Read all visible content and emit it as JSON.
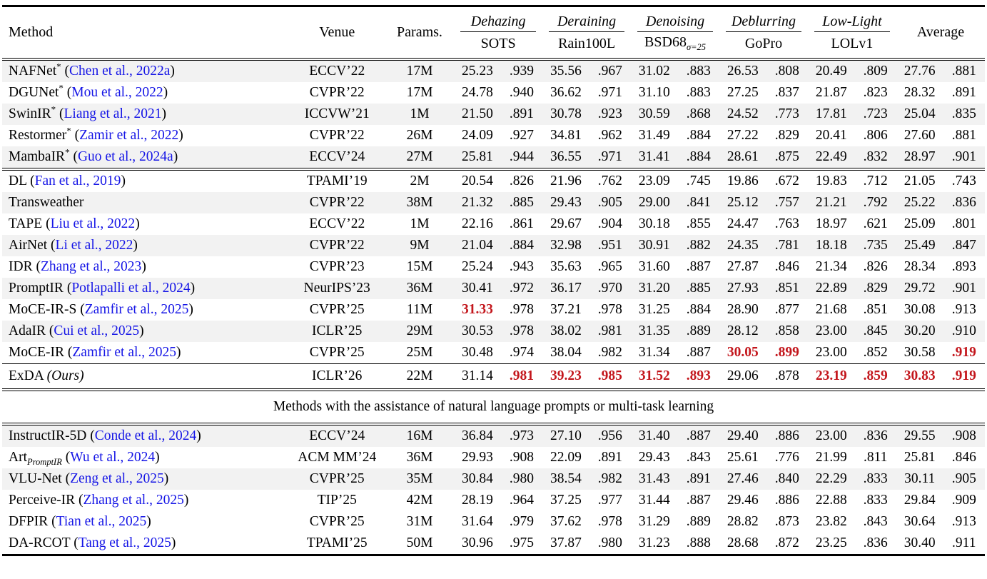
{
  "table": {
    "columns": {
      "method": "Method",
      "venue": "Venue",
      "params": "Params."
    },
    "tasks": [
      {
        "name": "Dehazing",
        "dataset": "SOTS",
        "dataset_sub": ""
      },
      {
        "name": "Deraining",
        "dataset": "Rain100L",
        "dataset_sub": ""
      },
      {
        "name": "Denoising",
        "dataset": "BSD68",
        "dataset_sub": "σ=25"
      },
      {
        "name": "Deblurring",
        "dataset": "GoPro",
        "dataset_sub": ""
      },
      {
        "name": "Low-Light",
        "dataset": "LOLv1",
        "dataset_sub": ""
      }
    ],
    "average_label": "Average",
    "section_label": "Methods with the assistance of natural language prompts or multi-task learning",
    "colors": {
      "stripe": "#f2f2f2",
      "citation_blue": "#1515e6",
      "highlight_red": "#c3161c"
    },
    "blocks": [
      {
        "name": "general",
        "rows": [
          {
            "method": "NAFNet",
            "sup": "*",
            "cite": "Chen et al., 2022a",
            "venue": "ECCV’22",
            "params": "17M",
            "stripe": true,
            "red": [],
            "vals": [
              "25.23",
              ".939",
              "35.56",
              ".967",
              "31.02",
              ".883",
              "26.53",
              ".808",
              "20.49",
              ".809",
              "27.76",
              ".881"
            ]
          },
          {
            "method": "DGUNet",
            "sup": "*",
            "cite": "Mou et al., 2022",
            "venue": "CVPR’22",
            "params": "17M",
            "stripe": false,
            "red": [],
            "vals": [
              "24.78",
              ".940",
              "36.62",
              ".971",
              "31.10",
              ".883",
              "27.25",
              ".837",
              "21.87",
              ".823",
              "28.32",
              ".891"
            ]
          },
          {
            "method": "SwinIR",
            "sup": "*",
            "cite": "Liang et al., 2021",
            "venue": "ICCVW’21",
            "params": "1M",
            "stripe": true,
            "red": [],
            "vals": [
              "21.50",
              ".891",
              "30.78",
              ".923",
              "30.59",
              ".868",
              "24.52",
              ".773",
              "17.81",
              ".723",
              "25.04",
              ".835"
            ]
          },
          {
            "method": "Restormer",
            "sup": "*",
            "cite": "Zamir et al., 2022",
            "venue": "CVPR’22",
            "params": "26M",
            "stripe": false,
            "red": [],
            "vals": [
              "24.09",
              ".927",
              "34.81",
              ".962",
              "31.49",
              ".884",
              "27.22",
              ".829",
              "20.41",
              ".806",
              "27.60",
              ".881"
            ]
          },
          {
            "method": "MambaIR",
            "sup": "*",
            "cite": "Guo et al., 2024a",
            "venue": "ECCV’24",
            "params": "27M",
            "stripe": true,
            "red": [],
            "vals": [
              "25.81",
              ".944",
              "36.55",
              ".971",
              "31.41",
              ".884",
              "28.61",
              ".875",
              "22.49",
              ".832",
              "28.97",
              ".901"
            ]
          }
        ]
      },
      {
        "name": "allinone",
        "rows": [
          {
            "method": "DL",
            "cite": "Fan et al., 2019",
            "venue": "TPAMI’19",
            "params": "2M",
            "stripe": false,
            "red": [],
            "vals": [
              "20.54",
              ".826",
              "21.96",
              ".762",
              "23.09",
              ".745",
              "19.86",
              ".672",
              "19.83",
              ".712",
              "21.05",
              ".743"
            ]
          },
          {
            "method": "Transweather",
            "venue": "CVPR’22",
            "params": "38M",
            "stripe": true,
            "red": [],
            "vals": [
              "21.32",
              ".885",
              "29.43",
              ".905",
              "29.00",
              ".841",
              "25.12",
              ".757",
              "21.21",
              ".792",
              "25.22",
              ".836"
            ]
          },
          {
            "method": "TAPE",
            "cite": "Liu et al., 2022",
            "venue": "ECCV’22",
            "params": "1M",
            "stripe": false,
            "red": [],
            "vals": [
              "22.16",
              ".861",
              "29.67",
              ".904",
              "30.18",
              ".855",
              "24.47",
              ".763",
              "18.97",
              ".621",
              "25.09",
              ".801"
            ]
          },
          {
            "method": "AirNet",
            "cite": "Li et al., 2022",
            "venue": "CVPR’22",
            "params": "9M",
            "stripe": true,
            "red": [],
            "vals": [
              "21.04",
              ".884",
              "32.98",
              ".951",
              "30.91",
              ".882",
              "24.35",
              ".781",
              "18.18",
              ".735",
              "25.49",
              ".847"
            ]
          },
          {
            "method": "IDR",
            "cite": "Zhang et al., 2023",
            "venue": "CVPR’23",
            "params": "15M",
            "stripe": false,
            "red": [],
            "vals": [
              "25.24",
              ".943",
              "35.63",
              ".965",
              "31.60",
              ".887",
              "27.87",
              ".846",
              "21.34",
              ".826",
              "28.34",
              ".893"
            ]
          },
          {
            "method": "PromptIR",
            "cite": "Potlapalli et al., 2024",
            "venue": "NeurIPS’23",
            "params": "36M",
            "stripe": true,
            "red": [],
            "vals": [
              "30.41",
              ".972",
              "36.17",
              ".970",
              "31.20",
              ".885",
              "27.93",
              ".851",
              "22.89",
              ".829",
              "29.72",
              ".901"
            ]
          },
          {
            "method": "MoCE-IR-S",
            "cite": "Zamfir et al., 2025",
            "venue": "CVPR’25",
            "params": "11M",
            "stripe": false,
            "red": [
              0
            ],
            "vals": [
              "31.33",
              ".978",
              "37.21",
              ".978",
              "31.25",
              ".884",
              "28.90",
              ".877",
              "21.68",
              ".851",
              "30.08",
              ".913"
            ]
          },
          {
            "method": "AdaIR",
            "cite": "Cui et al., 2025",
            "venue": "ICLR’25",
            "params": "29M",
            "stripe": true,
            "red": [],
            "vals": [
              "30.53",
              ".978",
              "38.02",
              ".981",
              "31.35",
              ".889",
              "28.12",
              ".858",
              "23.00",
              ".845",
              "30.20",
              ".910"
            ]
          },
          {
            "method": "MoCE-IR",
            "cite": "Zamfir et al., 2025",
            "venue": "CVPR’25",
            "params": "25M",
            "stripe": false,
            "red": [
              6,
              7,
              11
            ],
            "vals": [
              "30.48",
              ".974",
              "38.04",
              ".982",
              "31.34",
              ".887",
              "30.05",
              ".899",
              "23.00",
              ".852",
              "30.58",
              ".919"
            ]
          }
        ]
      },
      {
        "name": "ours",
        "rows": [
          {
            "method": "ExDA",
            "ours": "(Ours)",
            "venue": "ICLR’26",
            "params": "22M",
            "stripe": false,
            "red": [
              1,
              2,
              3,
              4,
              5,
              8,
              9,
              10,
              11
            ],
            "vals": [
              "31.14",
              ".981",
              "39.23",
              ".985",
              "31.52",
              ".893",
              "29.06",
              ".878",
              "23.19",
              ".859",
              "30.83",
              ".919"
            ]
          }
        ]
      },
      {
        "name": "language",
        "rows": [
          {
            "method": "InstructIR-5D",
            "cite": "Conde et al., 2024",
            "venue": "ECCV’24",
            "params": "16M",
            "stripe": true,
            "red": [],
            "vals": [
              "36.84",
              ".973",
              "27.10",
              ".956",
              "31.40",
              ".887",
              "29.40",
              ".886",
              "23.00",
              ".836",
              "29.55",
              ".908"
            ]
          },
          {
            "method": "Art",
            "method_sub": "PromptIR",
            "cite": "Wu et al., 2024",
            "venue": "ACM MM’24",
            "params": "36M",
            "stripe": false,
            "red": [],
            "vals": [
              "29.93",
              ".908",
              "22.09",
              ".891",
              "29.43",
              ".843",
              "25.61",
              ".776",
              "21.99",
              ".811",
              "25.81",
              ".846"
            ]
          },
          {
            "method": "VLU-Net",
            "cite": "Zeng et al., 2025",
            "venue": "CVPR’25",
            "params": "35M",
            "stripe": true,
            "red": [],
            "vals": [
              "30.84",
              ".980",
              "38.54",
              ".982",
              "31.43",
              ".891",
              "27.46",
              ".840",
              "22.29",
              ".833",
              "30.11",
              ".905"
            ]
          },
          {
            "method": "Perceive-IR",
            "cite": "Zhang et al., 2025",
            "venue": "TIP’25",
            "params": "42M",
            "stripe": false,
            "red": [],
            "vals": [
              "28.19",
              ".964",
              "37.25",
              ".977",
              "31.44",
              ".887",
              "29.46",
              ".886",
              "22.88",
              ".833",
              "29.84",
              ".909"
            ]
          },
          {
            "method": "DFPIR",
            "cite": "Tian et al., 2025",
            "venue": "CVPR’25",
            "params": "31M",
            "stripe": false,
            "red": [],
            "vals": [
              "31.64",
              ".979",
              "37.62",
              ".978",
              "31.29",
              ".889",
              "28.82",
              ".873",
              "23.82",
              ".843",
              "30.64",
              ".913"
            ]
          },
          {
            "method": "DA-RCOT",
            "cite": "Tang et al., 2025",
            "venue": "TPAMI’25",
            "params": "50M",
            "stripe": false,
            "red": [],
            "vals": [
              "30.96",
              ".975",
              "37.87",
              ".980",
              "31.23",
              ".888",
              "28.68",
              ".872",
              "23.25",
              ".836",
              "30.40",
              ".911"
            ]
          }
        ]
      }
    ]
  }
}
